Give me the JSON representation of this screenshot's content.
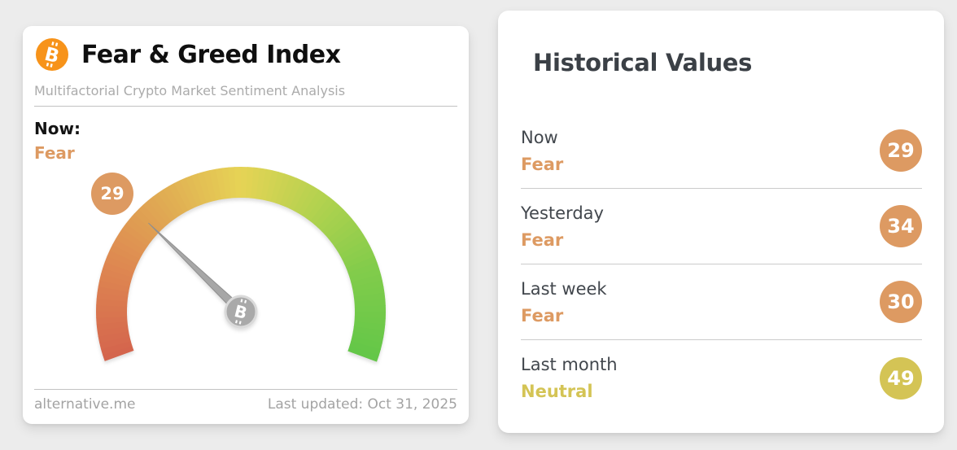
{
  "colors": {
    "fear_orange": "#dd9a62",
    "neutral_yellow": "#d4c455",
    "bitcoin_orange": "#f7931a",
    "needle_gray": "#a7a7a7",
    "hub_gray": "#a9a9a9"
  },
  "icons": {
    "bitcoin_letter": "B"
  },
  "gauge_card": {
    "title": "Fear & Greed Index",
    "subtitle": "Multifactorial Crypto Market Sentiment Analysis",
    "now_label": "Now:",
    "classification": "Fear",
    "classification_color": "#dd9a62",
    "value": "29",
    "badge_color": "#dd9a62",
    "footer_site": "alternative.me",
    "footer_updated": "Last updated: Oct 31, 2025"
  },
  "historical_card": {
    "title": "Historical Values",
    "rows": [
      {
        "period": "Now",
        "classification": "Fear",
        "value": "29",
        "color": "#dd9a62"
      },
      {
        "period": "Yesterday",
        "classification": "Fear",
        "value": "34",
        "color": "#dd9a62"
      },
      {
        "period": "Last week",
        "classification": "Fear",
        "value": "30",
        "color": "#dd9a62"
      },
      {
        "period": "Last month",
        "classification": "Neutral",
        "value": "49",
        "color": "#d4c455"
      }
    ]
  },
  "chart_data": {
    "type": "gauge",
    "title": "Fear & Greed Index",
    "value": 29,
    "classification": "Fear",
    "min": 0,
    "max": 100,
    "start_angle_deg": 200,
    "sweep_deg": -220,
    "color_stops": [
      {
        "t": 0.0,
        "color": "#d4644d"
      },
      {
        "t": 0.18,
        "color": "#de8751"
      },
      {
        "t": 0.34,
        "color": "#e0ab53"
      },
      {
        "t": 0.5,
        "color": "#e6d355"
      },
      {
        "t": 0.66,
        "color": "#b3d24f"
      },
      {
        "t": 0.82,
        "color": "#83cc4b"
      },
      {
        "t": 1.0,
        "color": "#63c748"
      }
    ],
    "historical": [
      {
        "label": "Now",
        "value": 29,
        "classification": "Fear"
      },
      {
        "label": "Yesterday",
        "value": 34,
        "classification": "Fear"
      },
      {
        "label": "Last week",
        "value": 30,
        "classification": "Fear"
      },
      {
        "label": "Last month",
        "value": 49,
        "classification": "Neutral"
      }
    ]
  }
}
